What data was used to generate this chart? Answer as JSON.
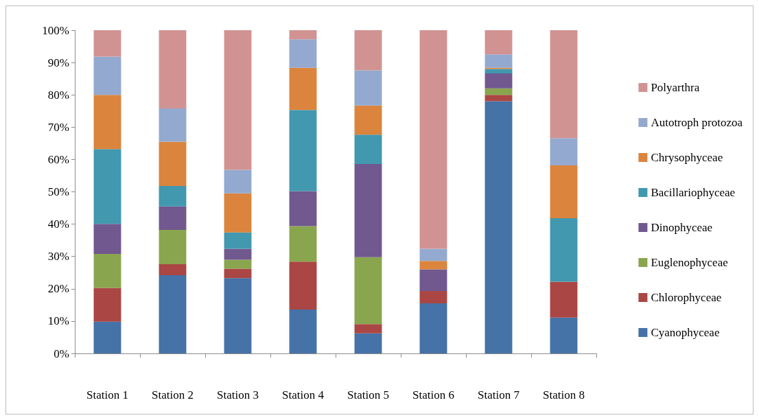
{
  "chart_data": {
    "type": "bar",
    "stacked": true,
    "categories": [
      "Station 1",
      "Station 2",
      "Station 3",
      "Station 4",
      "Station 5",
      "Station 6",
      "Station 7",
      "Station 8"
    ],
    "series": [
      {
        "name": "Cyanophyceae",
        "color": "#4572a7",
        "values": [
          9.8,
          24.2,
          23.3,
          13.6,
          6.2,
          15.5,
          78,
          11.1
        ]
      },
      {
        "name": "Chlorophyceae",
        "color": "#aa4643",
        "values": [
          10.5,
          3.4,
          2.9,
          14.8,
          2.9,
          3.8,
          2,
          11.1
        ]
      },
      {
        "name": "Euglenophyceae",
        "color": "#89a54e",
        "values": [
          10.5,
          10.6,
          2.8,
          11,
          20.7,
          0,
          2,
          0
        ]
      },
      {
        "name": "Dinophyceae",
        "color": "#71588f",
        "values": [
          9.3,
          7.3,
          3.4,
          10.8,
          28.8,
          6.7,
          4.6,
          0
        ]
      },
      {
        "name": "Bacillariophyceae",
        "color": "#4198af",
        "values": [
          23.1,
          6.3,
          5,
          25.1,
          9.1,
          0,
          1.4,
          19.6
        ]
      },
      {
        "name": "Chrysophyceae",
        "color": "#db843d",
        "values": [
          16.8,
          13.7,
          12.1,
          13.1,
          9,
          2.6,
          0.4,
          16.4
        ]
      },
      {
        "name": "Autotroph protozoa",
        "color": "#93a9cf",
        "values": [
          11.8,
          10.3,
          7.3,
          8.8,
          10.9,
          3.8,
          4.1,
          8.4
        ]
      },
      {
        "name": "Polyarthra",
        "color": "#d19392",
        "values": [
          8.2,
          24.2,
          43.2,
          2.8,
          12.4,
          67.6,
          7.5,
          33.4
        ]
      }
    ],
    "ylim": [
      0,
      100
    ],
    "yticks": [
      {
        "value": 0,
        "label": "0%"
      },
      {
        "value": 10,
        "label": "10%"
      },
      {
        "value": 20,
        "label": "20%"
      },
      {
        "value": 30,
        "label": "30%"
      },
      {
        "value": 40,
        "label": "40%"
      },
      {
        "value": 50,
        "label": "50%"
      },
      {
        "value": 60,
        "label": "60%"
      },
      {
        "value": 70,
        "label": "70%"
      },
      {
        "value": 80,
        "label": "80%"
      },
      {
        "value": 90,
        "label": "90%"
      },
      {
        "value": 100,
        "label": "100%"
      }
    ],
    "grid": false,
    "legend": "right"
  }
}
